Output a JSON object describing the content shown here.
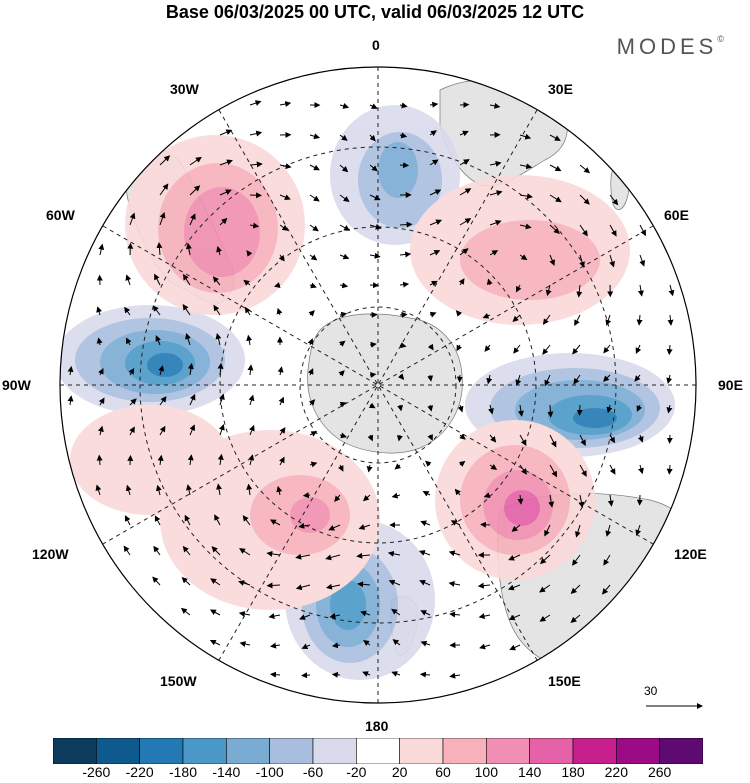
{
  "title": "Base 06/03/2025 00 UTC, valid 06/03/2025 12 UTC",
  "brand": "MODES",
  "brand_mark": "©",
  "meridian_labels": {
    "m0": "0",
    "m30e": "30E",
    "m60e": "60E",
    "m90e": "90E",
    "m120e": "120E",
    "m150e": "150E",
    "m180": "180",
    "m150w": "150W",
    "m120w": "120W",
    "m90w": "90W",
    "m60w": "60W",
    "m30w": "30W"
  },
  "reference_vector": "30",
  "colorbar": {
    "colors": [
      "#0c3b5e",
      "#0e5a8e",
      "#2279b4",
      "#4a98c8",
      "#7aabd3",
      "#a9bede",
      "#d9daec",
      "#ffffff",
      "#fad9da",
      "#f7b1bb",
      "#f28eb1",
      "#e561a8",
      "#c71f8d",
      "#9b0b86",
      "#5e0a72"
    ],
    "ticks": [
      "-260",
      "-220",
      "-180",
      "-140",
      "-100",
      "-60",
      "-20",
      "20",
      "60",
      "100",
      "140",
      "180",
      "220",
      "260"
    ]
  },
  "anomaly_centers": [
    {
      "name": "blue-90w",
      "type": "negative"
    },
    {
      "name": "blue-90e",
      "type": "negative"
    },
    {
      "name": "blue-170e",
      "type": "negative"
    },
    {
      "name": "blue-15e",
      "type": "negative"
    },
    {
      "name": "pink-45w",
      "type": "positive"
    },
    {
      "name": "pink-110e",
      "type": "positive"
    },
    {
      "name": "pink-140w",
      "type": "positive"
    },
    {
      "name": "pink-45e",
      "type": "positive"
    }
  ]
}
